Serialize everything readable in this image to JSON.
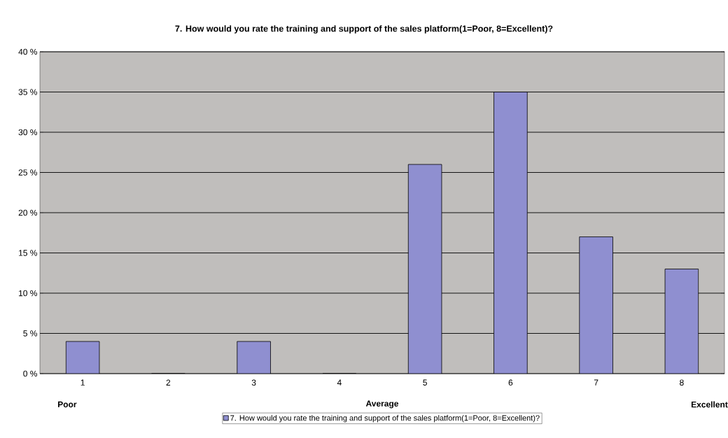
{
  "chart_data": {
    "type": "bar",
    "title": "7. How would you rate the training and support of the sales platform(1=Poor, 8=Excellent)?",
    "categories": [
      "1",
      "2",
      "3",
      "4",
      "5",
      "6",
      "7",
      "8"
    ],
    "series": [
      {
        "name": "7. How would you rate the training and support of the sales platform(1=Poor, 8=Excellent)?",
        "color": "#8f8fd0",
        "values": [
          4,
          0,
          4,
          0,
          26,
          35,
          17,
          13
        ]
      }
    ],
    "ylim": [
      0,
      40
    ],
    "yticks": [
      {
        "value": 0,
        "label": "0 %"
      },
      {
        "value": 5,
        "label": "5 %"
      },
      {
        "value": 10,
        "label": "10 %"
      },
      {
        "value": 15,
        "label": "15 %"
      },
      {
        "value": 20,
        "label": "20 %"
      },
      {
        "value": 25,
        "label": "25 %"
      },
      {
        "value": 30,
        "label": "30 %"
      },
      {
        "value": 35,
        "label": "35 %"
      },
      {
        "value": 40,
        "label": "40 %"
      }
    ],
    "grid": "y",
    "legend": "bottom",
    "annotations": [
      "Poor",
      "Average",
      "Excellent"
    ]
  }
}
